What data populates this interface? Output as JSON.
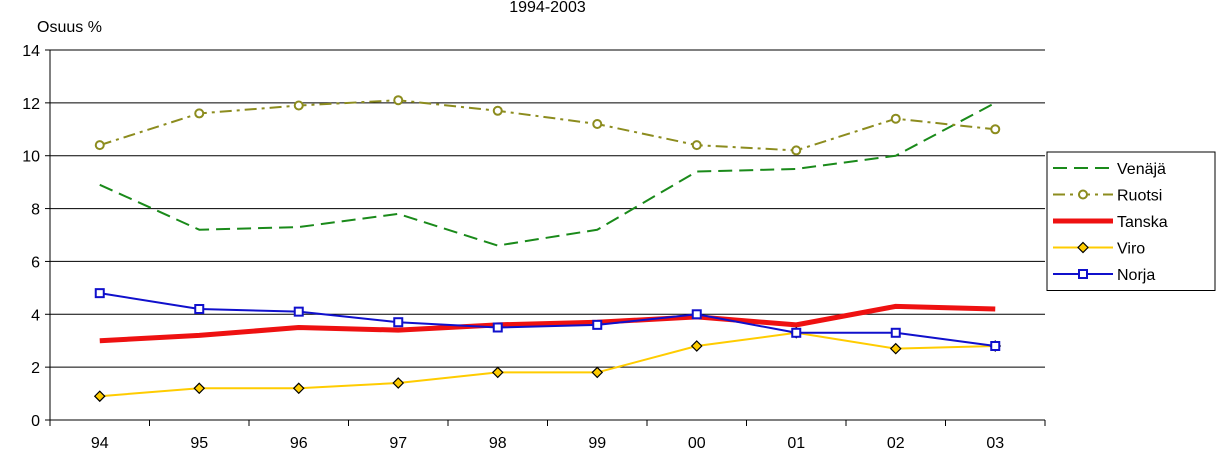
{
  "chart_data": {
    "type": "line",
    "title": "1994-2003",
    "ylabel": "Osuus %",
    "xlabel": "",
    "categories": [
      "94",
      "95",
      "96",
      "97",
      "98",
      "99",
      "00",
      "01",
      "02",
      "03"
    ],
    "ylim": [
      0,
      14
    ],
    "yticks": [
      0,
      2,
      4,
      6,
      8,
      10,
      12,
      14
    ],
    "grid": "horizontal",
    "legend_position": "right",
    "series": [
      {
        "name": "Venäjä",
        "color": "#1a8a1a",
        "style": "dashed",
        "marker": "none",
        "values": [
          8.9,
          7.2,
          7.3,
          7.8,
          6.6,
          7.2,
          9.4,
          9.5,
          10.0,
          12.0
        ]
      },
      {
        "name": "Ruotsi",
        "color": "#8c8c1e",
        "style": "dash-dot",
        "marker": "circle",
        "values": [
          10.4,
          11.6,
          11.9,
          12.1,
          11.7,
          11.2,
          10.4,
          10.2,
          11.4,
          11.0
        ]
      },
      {
        "name": "Tanska",
        "color": "#ee1111",
        "style": "solid-thick",
        "marker": "none",
        "values": [
          3.0,
          3.2,
          3.5,
          3.4,
          3.6,
          3.7,
          3.9,
          3.6,
          4.3,
          4.2
        ]
      },
      {
        "name": "Viro",
        "color": "#ffcc00",
        "style": "solid",
        "marker": "diamond",
        "values": [
          0.9,
          1.2,
          1.2,
          1.4,
          1.8,
          1.8,
          2.8,
          3.3,
          2.7,
          2.8
        ]
      },
      {
        "name": "Norja",
        "color": "#1010cc",
        "style": "solid",
        "marker": "square",
        "values": [
          4.8,
          4.2,
          4.1,
          3.7,
          3.5,
          3.6,
          4.0,
          3.3,
          3.3,
          2.8
        ]
      }
    ]
  }
}
